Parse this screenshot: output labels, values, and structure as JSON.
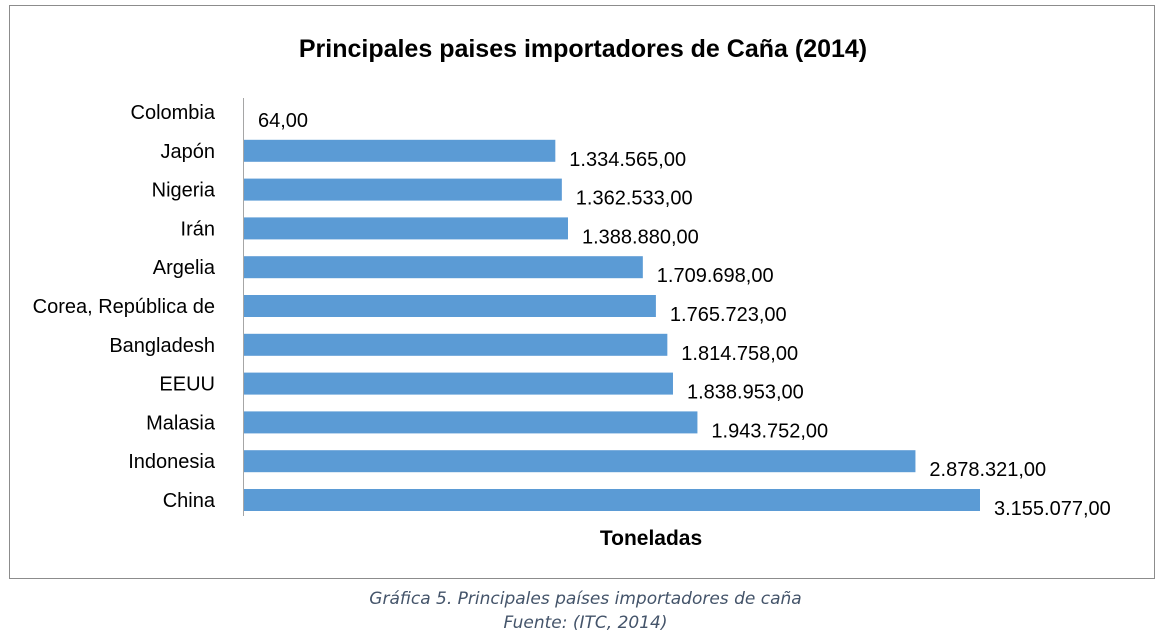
{
  "chart_data": {
    "type": "bar",
    "orientation": "horizontal",
    "title": "Principales paises importadores de Caña (2014)",
    "xlabel": "Toneladas",
    "ylabel": "",
    "categories": [
      "Colombia",
      "Japón",
      "Nigeria",
      "Irán",
      "Argelia",
      "Corea, República de",
      "Bangladesh",
      "EEUU",
      "Malasia",
      "Indonesia",
      "China"
    ],
    "values": [
      64,
      1334565,
      1362533,
      1388880,
      1709698,
      1765723,
      1814758,
      1838953,
      1943752,
      2878321,
      3155077
    ],
    "value_labels": [
      "64,00",
      "1.334.565,00",
      "1.362.533,00",
      "1.388.880,00",
      "1.709.698,00",
      "1.765.723,00",
      "1.814.758,00",
      "1.838.953,00",
      "1.943.752,00",
      "2.878.321,00",
      "3.155.077,00"
    ],
    "xlim": [
      0,
      3155077
    ],
    "bar_color": "#5b9bd5",
    "grid": false,
    "legend": "none"
  },
  "caption": {
    "line1": "Gráfica 5. Principales países importadores de caña",
    "line2": "Fuente: (ITC, 2014)"
  }
}
